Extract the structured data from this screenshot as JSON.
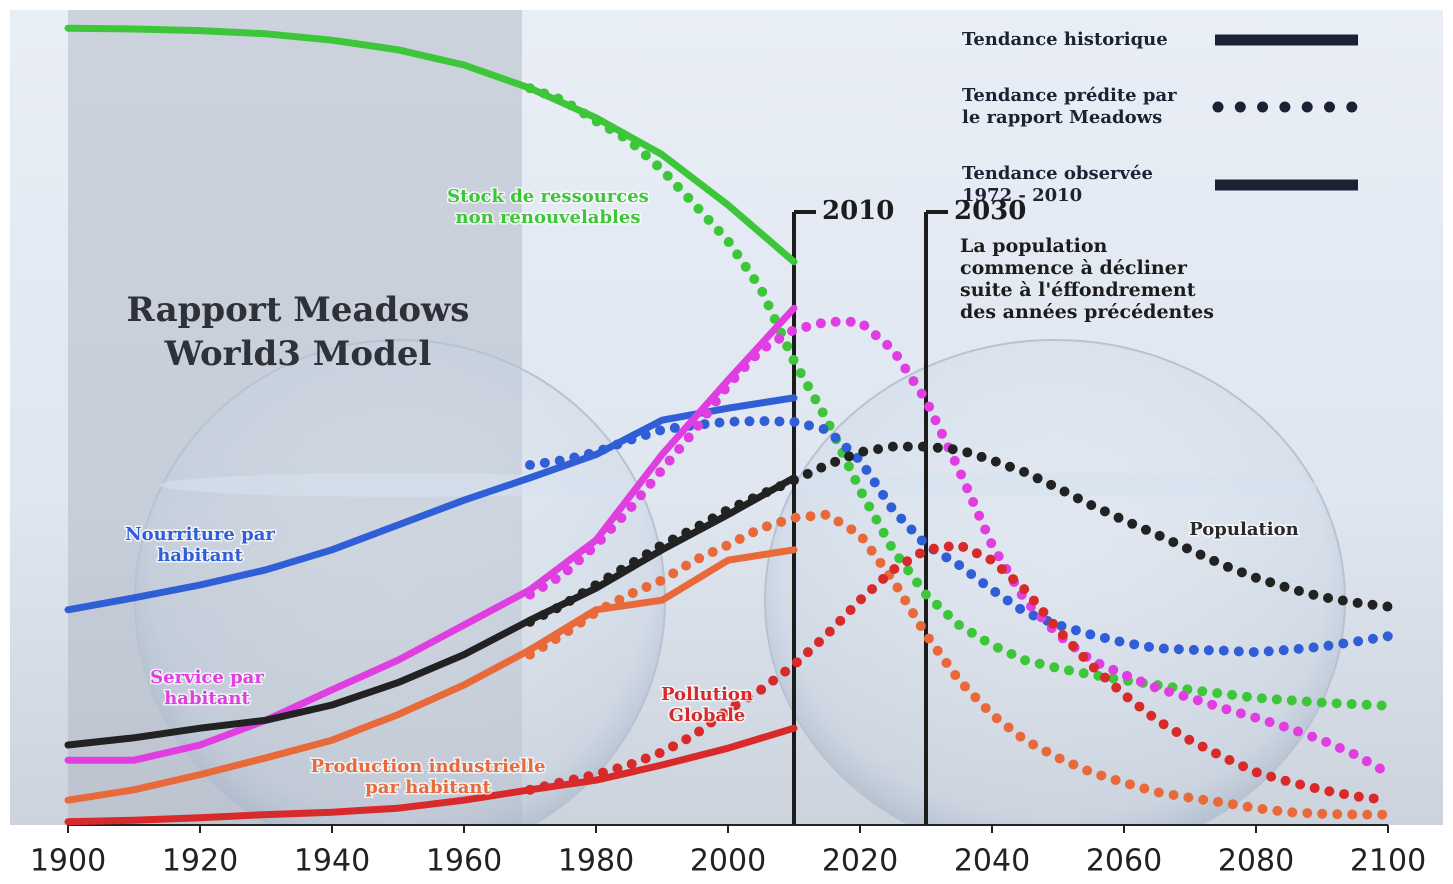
{
  "chart_data": {
    "type": "line",
    "title": [
      "Rapport Meadows",
      "World3 Model"
    ],
    "x_hist": [
      1900,
      1910,
      1920,
      1930,
      1940,
      1950,
      1960,
      1970
    ],
    "x_obs": [
      1970,
      1980,
      1990,
      2000,
      2010
    ],
    "x_pred": [
      1970,
      1975,
      1980,
      1985,
      1990,
      1995,
      2000,
      2005,
      2010,
      2015,
      2020,
      2025,
      2030,
      2035,
      2040,
      2045,
      2050,
      2055,
      2060,
      2065,
      2070,
      2075,
      2080,
      2085,
      2090,
      2095,
      2100
    ],
    "xlim": [
      1900,
      2100
    ],
    "xticks": [
      1900,
      1920,
      1940,
      1960,
      1980,
      2000,
      2020,
      2040,
      2060,
      2080,
      2100
    ],
    "ylim": [
      0,
      100
    ],
    "legend": [
      {
        "label": [
          "Tendance historique"
        ],
        "style": "solid"
      },
      {
        "label": [
          "Tendance prédite par",
          "le rapport Meadows"
        ],
        "style": "dotted"
      },
      {
        "label": [
          "Tendance observée",
          "1972 - 2010"
        ],
        "style": "solid"
      }
    ],
    "legend_color": "#1c2233",
    "markers": [
      {
        "x": 2010
      },
      {
        "x": 2030,
        "note": [
          "La population",
          "commence à décliner",
          "suite à l'éffondrement",
          "des années précédentes"
        ]
      }
    ],
    "series": [
      {
        "name": [
          "Stock de ressources",
          "non renouvelables"
        ],
        "color": "#3ec63a",
        "hist": [
          99.6,
          99.5,
          99.3,
          98.9,
          98.1,
          96.9,
          95,
          92.1
        ],
        "obs": [
          92.1,
          88.4,
          83.8,
          77.5,
          70.4
        ],
        "pred": [
          92.1,
          90.6,
          88,
          85.6,
          81.9,
          77.5,
          73,
          67,
          58,
          50.6,
          41.9,
          34.4,
          28.8,
          25,
          22.5,
          20.6,
          19.6,
          18.8,
          18.1,
          17.5,
          16.9,
          16.4,
          15.9,
          15.6,
          15.3,
          15.1,
          14.9
        ]
      },
      {
        "name": [
          "Nourriture par",
          "habitant"
        ],
        "color": "#2f5ed6",
        "hist": [
          26.9,
          28.4,
          30,
          31.9,
          34.4,
          37.5,
          40.6,
          43.4
        ],
        "obs": [
          43.4,
          46.3,
          50.6,
          52.1,
          53.4
        ],
        "pred": [
          45,
          45.6,
          46.6,
          48.1,
          49.4,
          50,
          50.4,
          50.5,
          50.4,
          49.4,
          45.6,
          39.4,
          35,
          32.5,
          29.4,
          26.6,
          25,
          23.8,
          22.8,
          22.1,
          21.9,
          21.8,
          21.6,
          21.9,
          22.3,
          22.9,
          23.6
        ]
      },
      {
        "name": [
          "Service par",
          "habitant"
        ],
        "color": "#e03ee0",
        "hist": [
          8.1,
          8.1,
          10,
          13.1,
          16.9,
          20.6,
          25,
          29.4
        ],
        "obs": [
          29.4,
          35.6,
          46.3,
          55.6,
          64.6
        ],
        "pred": [
          28.8,
          31.3,
          35,
          39.4,
          44.4,
          49.4,
          55,
          59.4,
          61.9,
          62.9,
          62.9,
          59.4,
          53.1,
          44.4,
          35,
          28.1,
          23.8,
          20.6,
          18.8,
          17.1,
          15.9,
          14.6,
          13.4,
          12.1,
          10.6,
          8.8,
          6.5
        ]
      },
      {
        "name": [
          "Population"
        ],
        "color": "#222222",
        "hist": [
          10,
          10.9,
          12.1,
          13.1,
          15,
          17.8,
          21.3,
          25.6
        ],
        "obs": [
          25.6,
          29.6,
          34.4,
          38.8,
          43.4
        ],
        "pred": [
          25.4,
          27.5,
          30,
          32.5,
          35,
          37.1,
          39.4,
          41.3,
          43.1,
          45,
          46.6,
          47.3,
          47.3,
          46.9,
          45.6,
          44.1,
          42.1,
          40,
          38.1,
          36.3,
          34.4,
          32.5,
          30.9,
          29.6,
          28.5,
          27.8,
          27.3
        ]
      },
      {
        "name": [
          "Production industrielle",
          "par habitant"
        ],
        "color": "#e8693a",
        "hist": [
          3.1,
          4.4,
          6.3,
          8.4,
          10.6,
          13.8,
          17.5,
          21.9
        ],
        "obs": [
          21.9,
          26.9,
          28.1,
          33.1,
          34.4
        ],
        "pred": [
          21.3,
          23.8,
          26.6,
          28.8,
          30.6,
          33.1,
          35,
          37.1,
          38.4,
          38.8,
          36.3,
          30.6,
          23.8,
          18.1,
          13.8,
          10.6,
          8.4,
          6.6,
          5.3,
          4.1,
          3.4,
          2.8,
          2.1,
          1.6,
          1.4,
          1.3,
          1.3
        ]
      },
      {
        "name": [
          "Pollution",
          "Globale"
        ],
        "color": "#d82a2a",
        "hist": [
          0.4,
          0.6,
          0.9,
          1.3,
          1.6,
          2.1,
          3.1,
          4.4
        ],
        "obs": [
          4.4,
          5.6,
          7.5,
          9.6,
          12.1
        ],
        "pred": [
          4.4,
          5.4,
          6.3,
          7.5,
          9.1,
          11.3,
          14.4,
          16.9,
          20,
          23.8,
          28.1,
          31.9,
          34.4,
          35,
          33.1,
          29.4,
          24.4,
          20,
          16.3,
          13.1,
          10.6,
          8.5,
          6.6,
          5.4,
          4.4,
          3.6,
          3.1
        ]
      }
    ]
  }
}
